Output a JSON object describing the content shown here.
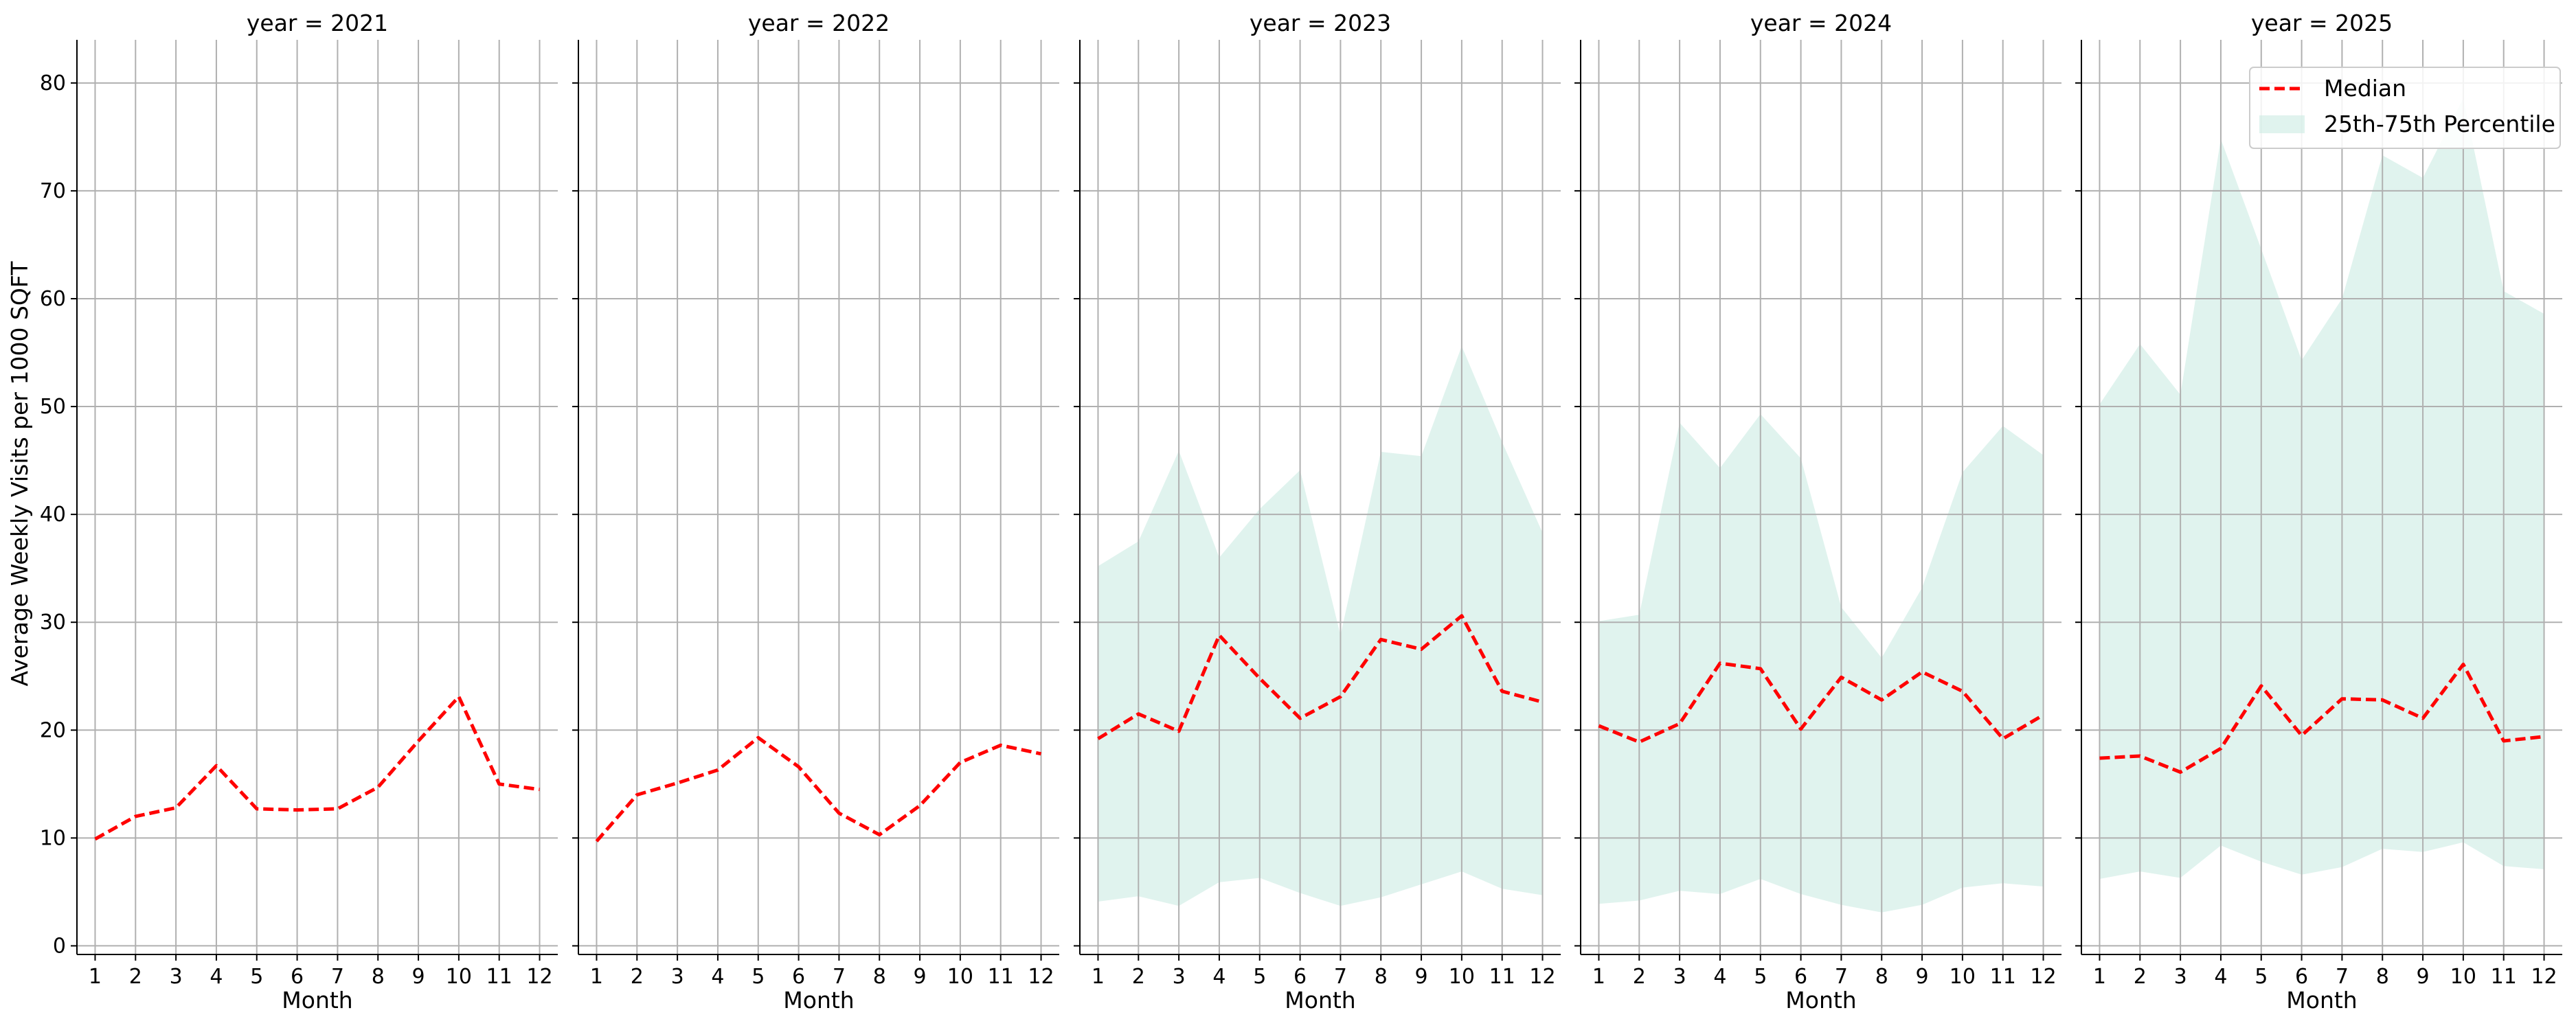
{
  "chart_data": {
    "type": "line",
    "ylabel": "Average Weekly Visits per 1000 SQFT",
    "xlabel": "Month",
    "ylim": [
      -0.8,
      84
    ],
    "xlim": [
      0.55,
      12.45
    ],
    "yticks": [
      0,
      10,
      20,
      30,
      40,
      50,
      60,
      70,
      80
    ],
    "xticks": [
      1,
      2,
      3,
      4,
      5,
      6,
      7,
      8,
      9,
      10,
      11,
      12
    ],
    "grid": true,
    "legend": {
      "position": "top-right",
      "median_label": "Median",
      "band_label": "25th-75th Percentile"
    },
    "colors": {
      "median": "#ff0000",
      "band": "#ccebe2"
    },
    "panels": [
      {
        "title": "year = 2021",
        "x": [
          1,
          2,
          3,
          4,
          5,
          6,
          7,
          8,
          9,
          10,
          11,
          12
        ],
        "median": [
          9.9,
          12.0,
          12.8,
          16.7,
          12.7,
          12.6,
          12.7,
          14.7,
          19.0,
          23.1,
          15.0,
          14.5
        ],
        "p25": null,
        "p75": null
      },
      {
        "title": "year = 2022",
        "x": [
          1,
          2,
          3,
          4,
          5,
          6,
          7,
          8,
          9,
          10,
          11,
          12
        ],
        "median": [
          9.7,
          14.0,
          15.1,
          16.3,
          19.3,
          16.6,
          12.3,
          10.3,
          13.0,
          17.0,
          18.6,
          17.8
        ],
        "p25": null,
        "p75": null
      },
      {
        "title": "year = 2023",
        "x": [
          1,
          2,
          3,
          4,
          5,
          6,
          7,
          8,
          9,
          10,
          11,
          12
        ],
        "median": [
          19.2,
          21.5,
          19.9,
          28.8,
          24.8,
          21.1,
          23.1,
          28.4,
          27.5,
          30.6,
          23.6,
          22.6
        ],
        "p25": [
          4.1,
          4.6,
          3.7,
          5.9,
          6.3,
          4.9,
          3.7,
          4.5,
          5.7,
          6.9,
          5.3,
          4.7
        ],
        "p75": [
          35.2,
          37.5,
          45.9,
          36.0,
          40.5,
          44.1,
          28.8,
          45.8,
          45.4,
          55.6,
          46.7,
          38.3
        ]
      },
      {
        "title": "year = 2024",
        "x": [
          1,
          2,
          3,
          4,
          5,
          6,
          7,
          8,
          9,
          10,
          11,
          12
        ],
        "median": [
          20.4,
          18.9,
          20.6,
          26.2,
          25.7,
          20.1,
          24.9,
          22.8,
          25.4,
          23.6,
          19.2,
          21.4
        ],
        "p25": [
          3.9,
          4.2,
          5.1,
          4.8,
          6.2,
          4.8,
          3.8,
          3.1,
          3.8,
          5.4,
          5.8,
          5.5
        ],
        "p75": [
          30.1,
          30.7,
          48.5,
          44.3,
          49.3,
          45.2,
          31.4,
          26.7,
          33.2,
          43.9,
          48.2,
          45.5
        ]
      },
      {
        "title": "year = 2025",
        "x": [
          1,
          2,
          3,
          4,
          5,
          6,
          7,
          8,
          9,
          10,
          11,
          12
        ],
        "median": [
          17.4,
          17.6,
          16.1,
          18.3,
          24.1,
          19.5,
          22.9,
          22.8,
          21.1,
          26.1,
          19.0,
          19.4
        ],
        "p25": [
          6.2,
          6.9,
          6.3,
          9.3,
          7.8,
          6.6,
          7.3,
          9.0,
          8.7,
          9.6,
          7.4,
          7.1
        ],
        "p75": [
          50.2,
          55.8,
          51.1,
          74.8,
          64.6,
          54.3,
          60.0,
          73.3,
          71.2,
          78.6,
          60.7,
          58.6
        ]
      }
    ]
  }
}
